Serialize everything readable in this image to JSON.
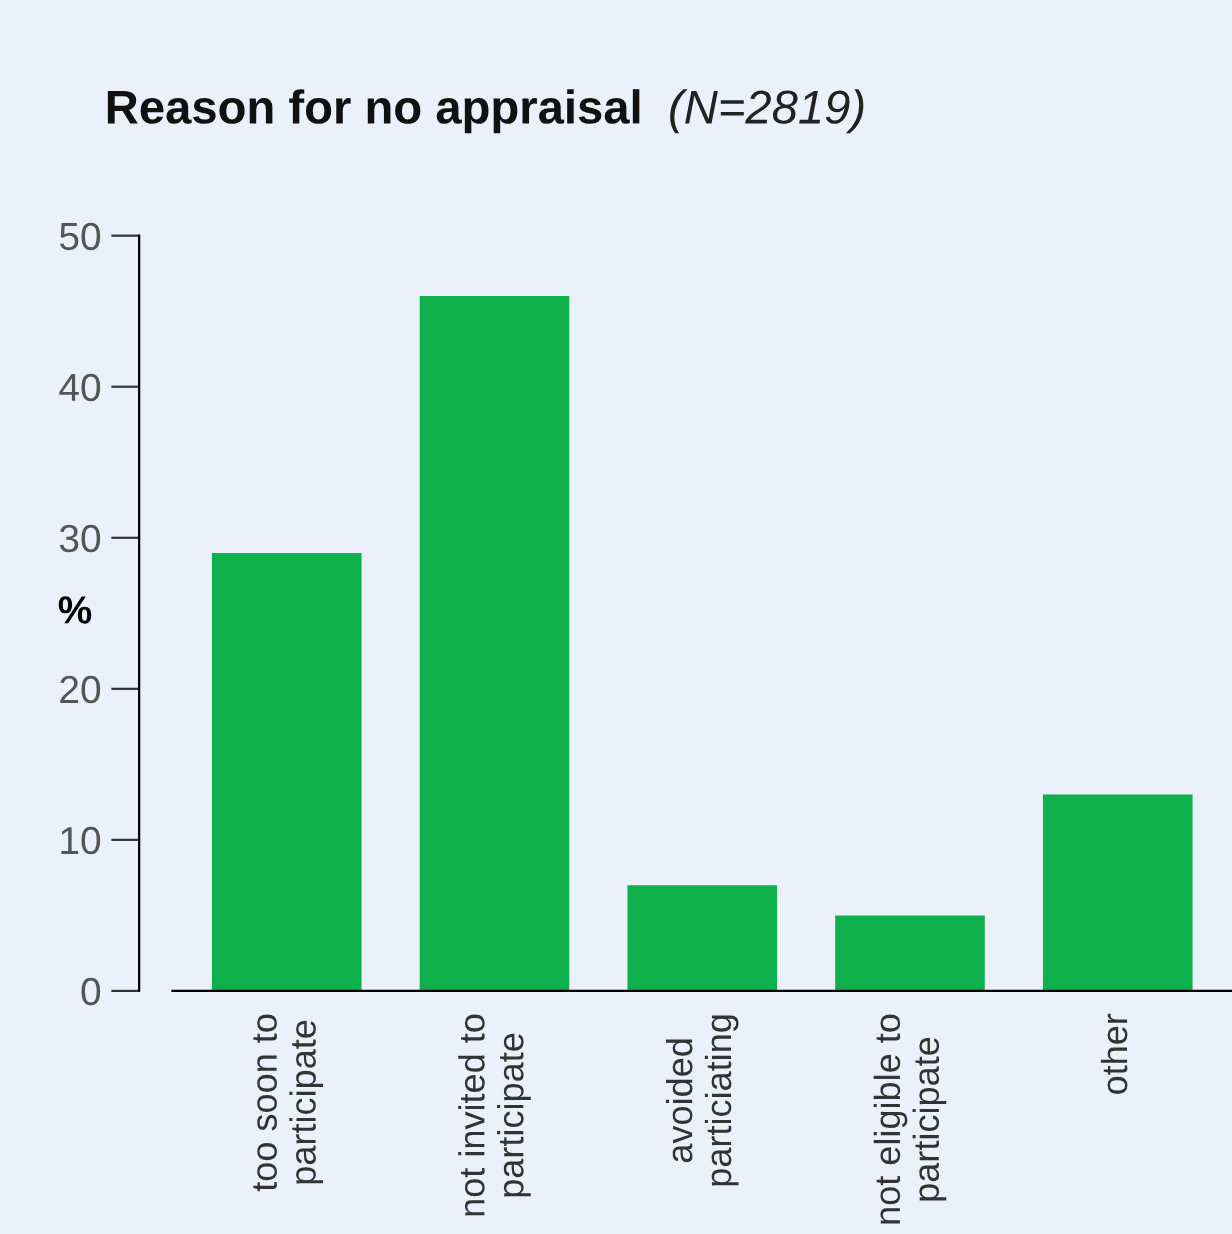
{
  "chart_data": {
    "type": "bar",
    "title": "Reason for no appraisal",
    "subtitle": "(N=2819)",
    "ylabel": "%",
    "categories": [
      "too soon to\nparticipate",
      "not invited to\nparticipate",
      "avoided\nparticiating",
      "not eligible to\nparticipate",
      "other"
    ],
    "values": [
      29,
      46,
      7,
      5,
      13
    ],
    "color": "#0db04b",
    "ylim": [
      0,
      50
    ],
    "yticks": [
      0,
      10,
      20,
      30,
      40,
      50
    ],
    "grid": false,
    "legend": false
  }
}
